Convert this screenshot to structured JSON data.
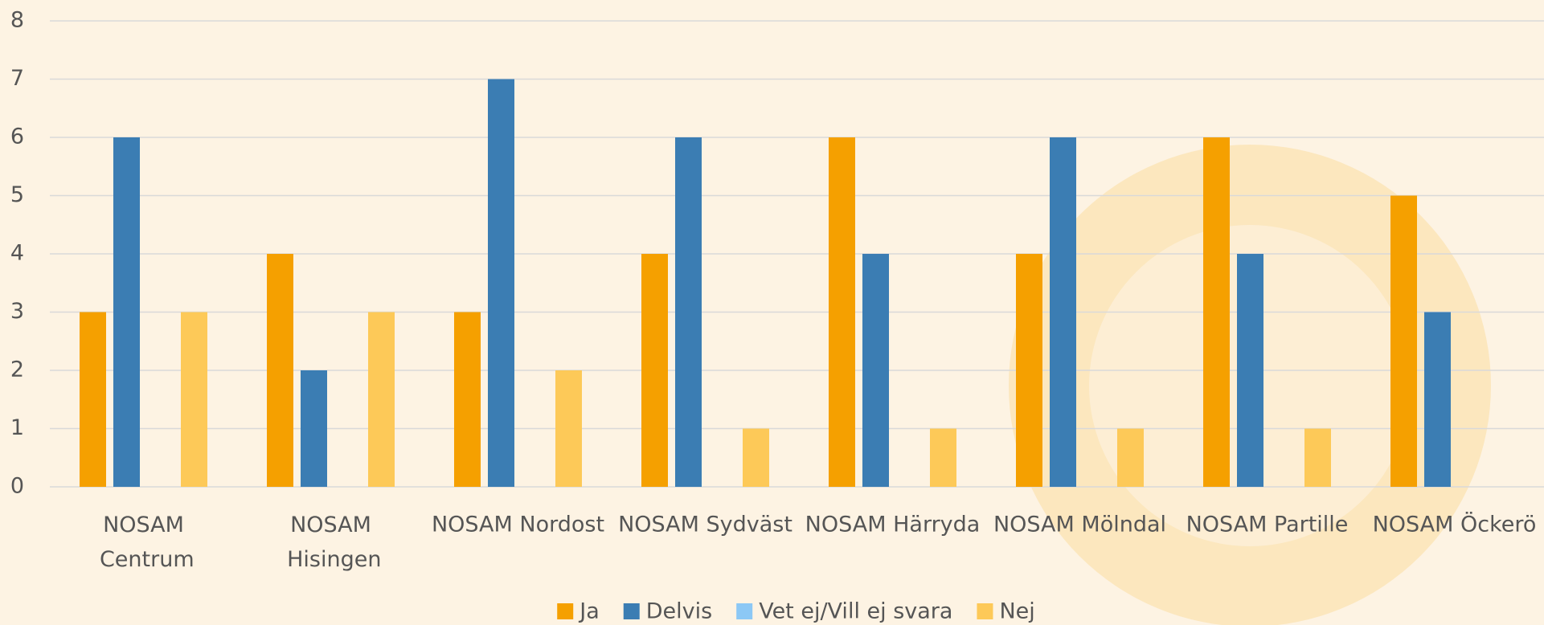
{
  "chart_data": {
    "type": "bar",
    "categories": [
      "NOSAM Centrum",
      "NOSAM Hisingen",
      "NOSAM Nordost",
      "NOSAM Sydväst",
      "NOSAM Härryda",
      "NOSAM Mölndal",
      "NOSAM Partille",
      "NOSAM Öckerö"
    ],
    "series": [
      {
        "name": "Ja",
        "color": "#f5a000",
        "values": [
          3,
          4,
          3,
          4,
          6,
          4,
          6,
          5
        ]
      },
      {
        "name": "Delvis",
        "color": "#3b7db3",
        "values": [
          6,
          2,
          7,
          6,
          4,
          6,
          4,
          3
        ]
      },
      {
        "name": "Vet ej/Vill ej svara",
        "color": "#8cc8f5",
        "values": [
          0,
          0,
          0,
          0,
          0,
          0,
          0,
          0
        ]
      },
      {
        "name": "Nej",
        "color": "#fdc958",
        "values": [
          3,
          3,
          2,
          1,
          1,
          1,
          1,
          0
        ]
      }
    ],
    "ylim": [
      0,
      8
    ],
    "yticks": [
      0,
      1,
      2,
      3,
      4,
      5,
      6,
      7,
      8
    ],
    "grid": true,
    "legend": "bottom"
  }
}
